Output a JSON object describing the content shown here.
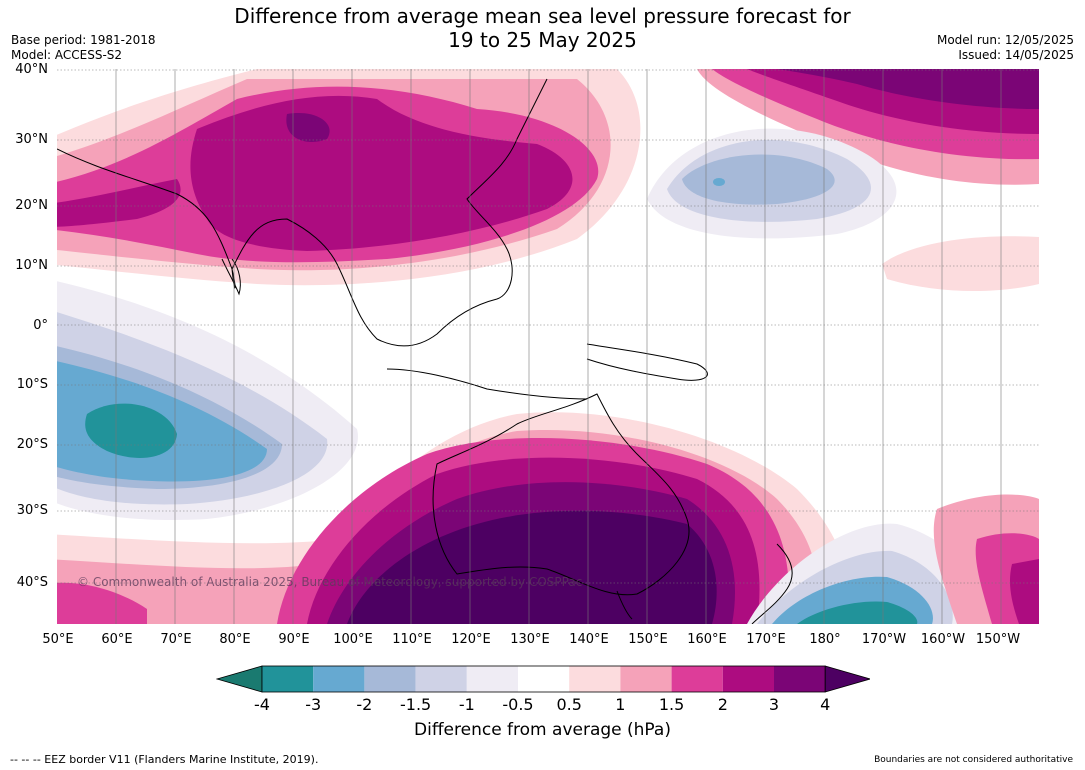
{
  "header": {
    "title_line1": "Difference from average mean sea level pressure forecast for",
    "title_line2": "19 to 25 May 2025",
    "base_period": "Base period: 1981-2018",
    "model": "Model: ACCESS-S2",
    "model_run": "Model run: 12/05/2025",
    "issued": "Issued: 14/05/2025"
  },
  "map": {
    "lat_labels": [
      "40°N",
      "30°N",
      "20°N",
      "10°N",
      "0°",
      "10°S",
      "20°S",
      "30°S",
      "40°S"
    ],
    "lon_labels": [
      "50°E",
      "60°E",
      "70°E",
      "80°E",
      "90°E",
      "100°E",
      "110°E",
      "120°E",
      "130°E",
      "140°E",
      "150°E",
      "160°E",
      "170°E",
      "180°",
      "170°W",
      "160°W",
      "150°W"
    ],
    "copyright": "© Commonwealth of Australia 2025, Bureau of Meteorology, supported by COSPPac"
  },
  "colorbar": {
    "ticks": [
      "-4",
      "-3",
      "-2",
      "-1.5",
      "-1",
      "-0.5",
      "0.5",
      "1",
      "1.5",
      "2",
      "3",
      "4"
    ],
    "colors": [
      "#1a7a70",
      "#21939a",
      "#66a9d1",
      "#a6b9d8",
      "#cfd2e6",
      "#efecf4",
      "#ffffff",
      "#fcdcde",
      "#f5a2b9",
      "#dd3d99",
      "#ad0c80",
      "#7b0576",
      "#4d0062"
    ],
    "label": "Difference from average (hPa)"
  },
  "footer": {
    "eez_note": "--  --  -- EEZ border V11 (Flanders Marine Institute, 2019).",
    "disclaimer": "Boundaries are not considered authoritative"
  }
}
